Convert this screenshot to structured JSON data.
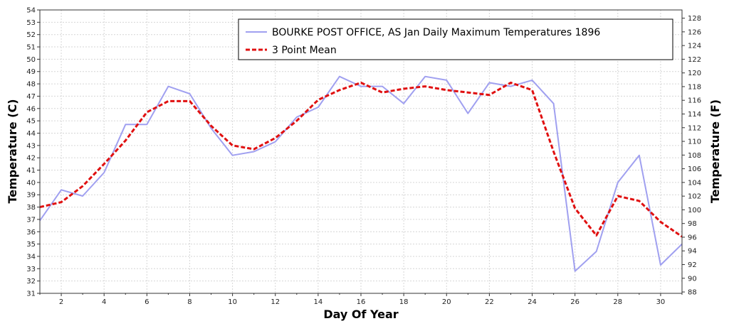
{
  "chart_data": {
    "type": "line",
    "x": [
      1,
      2,
      3,
      4,
      5,
      6,
      7,
      8,
      9,
      10,
      11,
      12,
      13,
      14,
      15,
      16,
      17,
      18,
      19,
      20,
      21,
      22,
      23,
      24,
      25,
      26,
      27,
      28,
      29,
      30,
      31
    ],
    "series": [
      {
        "name": "BOURKE POST OFFICE, AS  Jan  Daily Maximum Temperatures 1896",
        "color": "#a0a0f0",
        "style": "solid",
        "values": [
          36.9,
          39.4,
          38.9,
          40.8,
          44.7,
          44.7,
          47.8,
          47.2,
          44.4,
          42.2,
          42.5,
          43.3,
          45.3,
          46.1,
          48.6,
          47.8,
          47.8,
          46.4,
          48.6,
          48.3,
          45.6,
          48.1,
          47.8,
          48.3,
          46.4,
          32.8,
          34.4,
          40.0,
          42.2,
          33.3,
          35.0
        ]
      },
      {
        "name": "3 Point Mean",
        "color": "#e01010",
        "style": "dashed",
        "values": [
          38.0,
          38.4,
          39.7,
          41.5,
          43.4,
          45.7,
          46.6,
          46.6,
          44.6,
          43.0,
          42.7,
          43.6,
          45.0,
          46.7,
          47.5,
          48.1,
          47.3,
          47.6,
          47.8,
          47.5,
          47.3,
          47.1,
          48.1,
          47.5,
          42.5,
          37.9,
          35.7,
          38.9,
          38.5,
          36.8,
          35.6
        ]
      }
    ],
    "xlabel": "Day Of Year",
    "ylabel": "Temperature (C)",
    "y2label": "Temperature (F)",
    "xlim": [
      1,
      31
    ],
    "ylim": [
      31,
      54
    ],
    "y2lim": [
      87.8,
      129.2
    ],
    "xticks": [
      "2",
      "4",
      "6",
      "8",
      "10",
      "12",
      "14",
      "16",
      "18",
      "20",
      "22",
      "24",
      "26",
      "28",
      "30"
    ],
    "yticks": [
      "31",
      "32",
      "33",
      "34",
      "35",
      "36",
      "37",
      "38",
      "39",
      "40",
      "41",
      "42",
      "43",
      "44",
      "45",
      "46",
      "47",
      "48",
      "49",
      "50",
      "51",
      "52",
      "53",
      "54"
    ],
    "y2ticks": [
      "88",
      "90",
      "92",
      "94",
      "96",
      "98",
      "100",
      "102",
      "104",
      "106",
      "108",
      "110",
      "112",
      "114",
      "116",
      "118",
      "120",
      "122",
      "124",
      "126",
      "128"
    ],
    "grid": true,
    "legend_position": "top-right"
  }
}
